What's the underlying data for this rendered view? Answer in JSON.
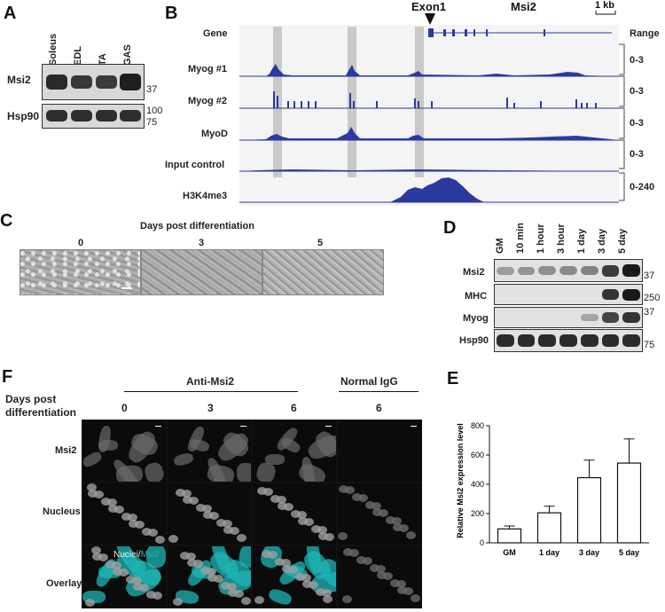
{
  "panels": {
    "A": "A",
    "B": "B",
    "C": "C",
    "D": "D",
    "E": "E",
    "F": "F"
  },
  "panelA": {
    "lanes": [
      "Soleus",
      "EDL",
      "TA",
      "GAS"
    ],
    "rows": [
      {
        "name": "Msi2",
        "markers": [
          "37"
        ]
      },
      {
        "name": "Hsp90",
        "markers": [
          "100",
          "75"
        ]
      }
    ]
  },
  "panelB": {
    "exon_label": "Exon1",
    "gene_name": "Msi2",
    "scale": "1 kb",
    "range_header": "Range",
    "tracks": [
      {
        "name": "Gene",
        "range": ""
      },
      {
        "name": "Myog #1",
        "range": "0-3"
      },
      {
        "name": "Myog #2",
        "range": "0-3"
      },
      {
        "name": "MyoD",
        "range": "0-3"
      },
      {
        "name": "Input control",
        "range": "0-3"
      },
      {
        "name": "H3K4me3",
        "range": "0-240"
      }
    ]
  },
  "panelC": {
    "title": "Days post differentiation",
    "days": [
      "0",
      "3",
      "5"
    ]
  },
  "panelD": {
    "lanes": [
      "GM",
      "10 min",
      "1 hour",
      "3 hour",
      "1 day",
      "3 day",
      "5 day"
    ],
    "rows": [
      {
        "name": "Msi2",
        "marker": "37",
        "levels": [
          0.25,
          0.3,
          0.32,
          0.35,
          0.4,
          0.8,
          1.0
        ]
      },
      {
        "name": "MHC",
        "marker": "250",
        "levels": [
          0,
          0,
          0,
          0,
          0,
          0.85,
          1.0
        ]
      },
      {
        "name": "Myog",
        "marker": "37",
        "levels": [
          0,
          0,
          0,
          0,
          0.2,
          0.75,
          0.85
        ]
      },
      {
        "name": "Hsp90",
        "marker": "75",
        "levels": [
          0.9,
          0.9,
          0.9,
          0.9,
          0.9,
          0.9,
          0.9
        ]
      }
    ]
  },
  "panelF": {
    "header_left": "Days post",
    "header_left2": "differentiation",
    "group1": "Anti-Msi2",
    "group2": "Normal IgG",
    "days": [
      "0",
      "3",
      "6",
      "6"
    ],
    "rows": [
      "Msi2",
      "Nucleus",
      "Overlay"
    ],
    "overlay_text_a": "Nuclei/",
    "overlay_text_b": "Msi2"
  },
  "chart_data": {
    "type": "bar",
    "categories": [
      "GM",
      "1 day",
      "3 day",
      "5 day"
    ],
    "values": [
      95,
      205,
      445,
      545
    ],
    "errors": [
      20,
      45,
      120,
      165
    ],
    "ylabel": "Relative Msi2 expression level",
    "ylim": [
      0,
      800
    ],
    "yticks": [
      0,
      200,
      400,
      600,
      800
    ]
  }
}
